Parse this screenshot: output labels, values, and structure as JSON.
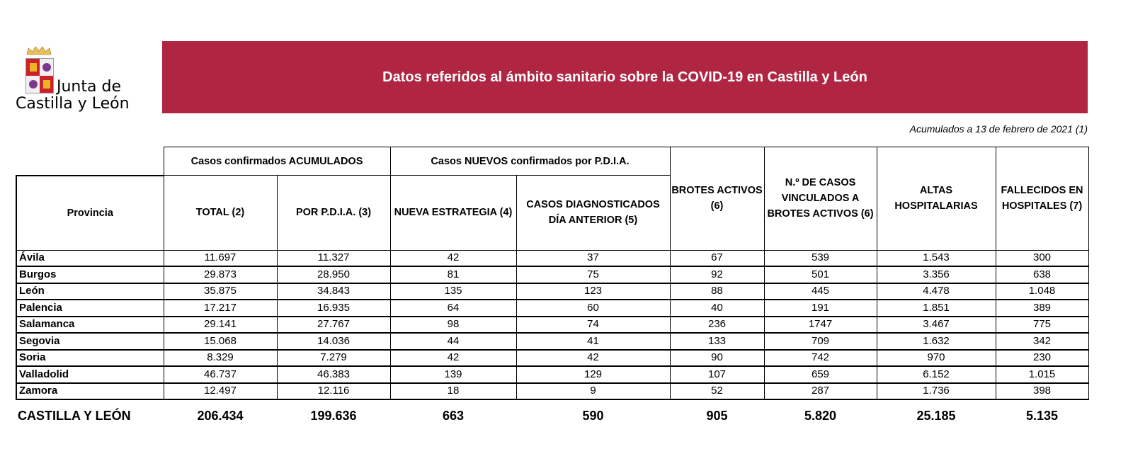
{
  "logo": {
    "line1": "Junta de",
    "line2": "Castilla y León"
  },
  "banner": {
    "title": "Datos referidos al ámbito sanitario sobre la COVID-19 en Castilla y León"
  },
  "note": "Acumulados a 13 de febrero de 2021 (1)",
  "table": {
    "group_headers": {
      "acumulados": "Casos confirmados ACUMULADOS",
      "nuevos": "Casos NUEVOS confirmados por P.D.I.A."
    },
    "columns": [
      "Provincia",
      "TOTAL (2)",
      "POR P.D.I.A. (3)",
      "NUEVA ESTRATEGIA (4)",
      "CASOS DIAGNOSTICADOS DÍA ANTERIOR (5)",
      "BROTES ACTIVOS (6)",
      "N.º DE CASOS VINCULADOS A BROTES ACTIVOS (6)",
      "ALTAS HOSPITALARIAS",
      "FALLECIDOS EN HOSPITALES (7)"
    ],
    "rows": [
      [
        "Ávila",
        "11.697",
        "11.327",
        "42",
        "37",
        "67",
        "539",
        "1.543",
        "300"
      ],
      [
        "Burgos",
        "29.873",
        "28.950",
        "81",
        "75",
        "92",
        "501",
        "3.356",
        "638"
      ],
      [
        "León",
        "35.875",
        "34.843",
        "135",
        "123",
        "88",
        "445",
        "4.478",
        "1.048"
      ],
      [
        "Palencia",
        "17.217",
        "16.935",
        "64",
        "60",
        "40",
        "191",
        "1.851",
        "389"
      ],
      [
        "Salamanca",
        "29.141",
        "27.767",
        "98",
        "74",
        "236",
        "1747",
        "3.467",
        "775"
      ],
      [
        "Segovia",
        "15.068",
        "14.036",
        "44",
        "41",
        "133",
        "709",
        "1.632",
        "342"
      ],
      [
        "Soria",
        "8.329",
        "7.279",
        "42",
        "42",
        "90",
        "742",
        "970",
        "230"
      ],
      [
        "Valladolid",
        "46.737",
        "46.383",
        "139",
        "129",
        "107",
        "659",
        "6.152",
        "1.015"
      ],
      [
        "Zamora",
        "12.497",
        "12.116",
        "18",
        "9",
        "52",
        "287",
        "1.736",
        "398"
      ]
    ],
    "total": [
      "CASTILLA Y LEÓN",
      "206.434",
      "199.636",
      "663",
      "590",
      "905",
      "5.820",
      "25.185",
      "5.135"
    ]
  },
  "colors": {
    "banner": "#b02642"
  }
}
